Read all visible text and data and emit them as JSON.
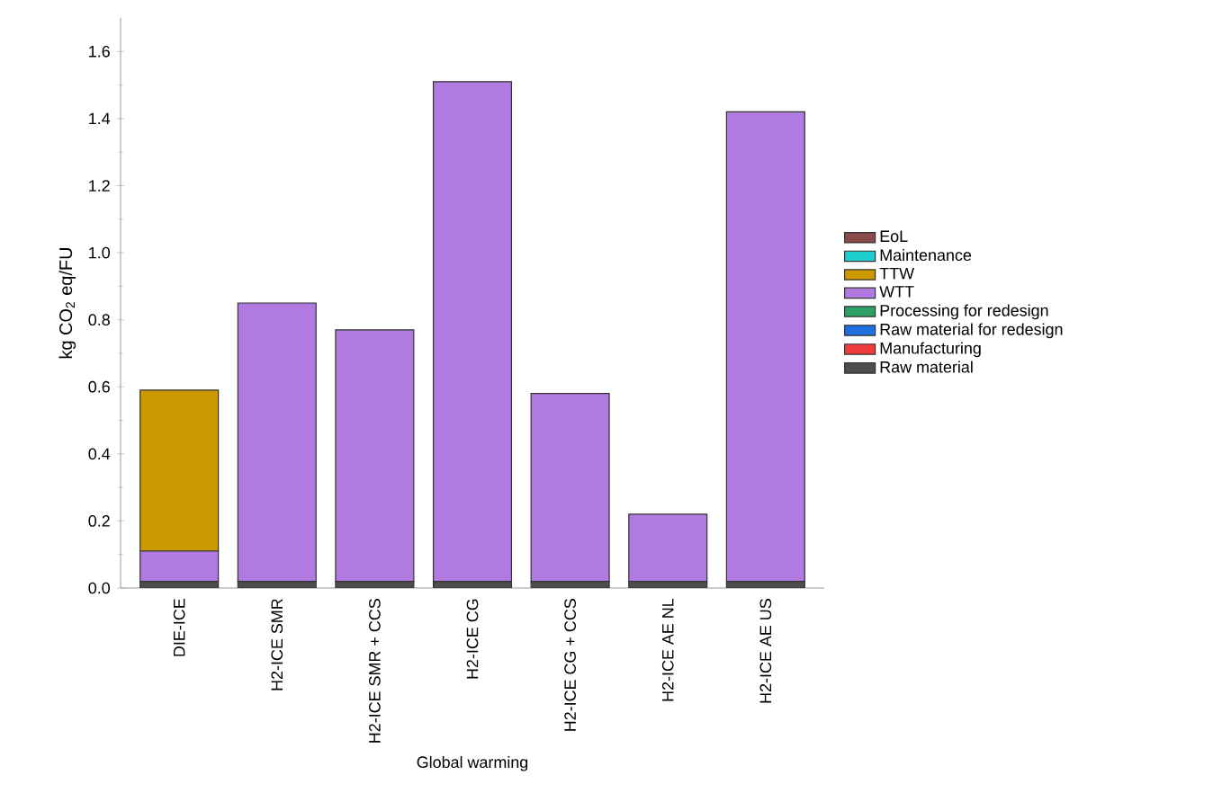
{
  "chart_data": {
    "type": "bar",
    "stacked": true,
    "xlabel": "Global warming",
    "ylabel": "kg CO$_{2}$ eq/FU",
    "categories": [
      "DIE-ICE",
      "H2-ICE SMR",
      "H2-ICE SMR + CCS",
      "H2-ICE CG",
      "H2-ICE CG + CCS",
      "H2-ICE AE NL",
      "H2-ICE AE US"
    ],
    "series": [
      {
        "name": "Raw material",
        "color": "#4d4d4d",
        "values": [
          0.02,
          0.02,
          0.02,
          0.02,
          0.02,
          0.02,
          0.02
        ]
      },
      {
        "name": "Manufacturing",
        "color": "#f03c3c",
        "values": [
          0,
          0,
          0,
          0,
          0,
          0,
          0
        ]
      },
      {
        "name": "Raw material for redesign",
        "color": "#1f6fe0",
        "values": [
          0,
          0,
          0,
          0,
          0,
          0,
          0
        ]
      },
      {
        "name": "Processing for redesign",
        "color": "#2ea066",
        "values": [
          0,
          0,
          0,
          0,
          0,
          0,
          0
        ]
      },
      {
        "name": "WTT",
        "color": "#b07ae0",
        "values": [
          0.09,
          0.83,
          0.75,
          1.49,
          0.56,
          0.2,
          1.4
        ]
      },
      {
        "name": "TTW",
        "color": "#cc9900",
        "values": [
          0.48,
          0,
          0,
          0,
          0,
          0,
          0
        ]
      },
      {
        "name": "Maintenance",
        "color": "#1fcfcf",
        "values": [
          0,
          0,
          0,
          0,
          0,
          0,
          0
        ]
      },
      {
        "name": "EoL",
        "color": "#8b4a4a",
        "values": [
          0,
          0,
          0,
          0,
          0,
          0,
          0
        ]
      }
    ],
    "ylim": [
      0,
      1.7
    ],
    "yticks": [
      {
        "value": 0,
        "label": "0.0"
      },
      0.2,
      0.4,
      0.6,
      0.8,
      {
        "value": 1,
        "label": "1.0"
      },
      1.2,
      1.4,
      1.6
    ],
    "legend": "right"
  }
}
